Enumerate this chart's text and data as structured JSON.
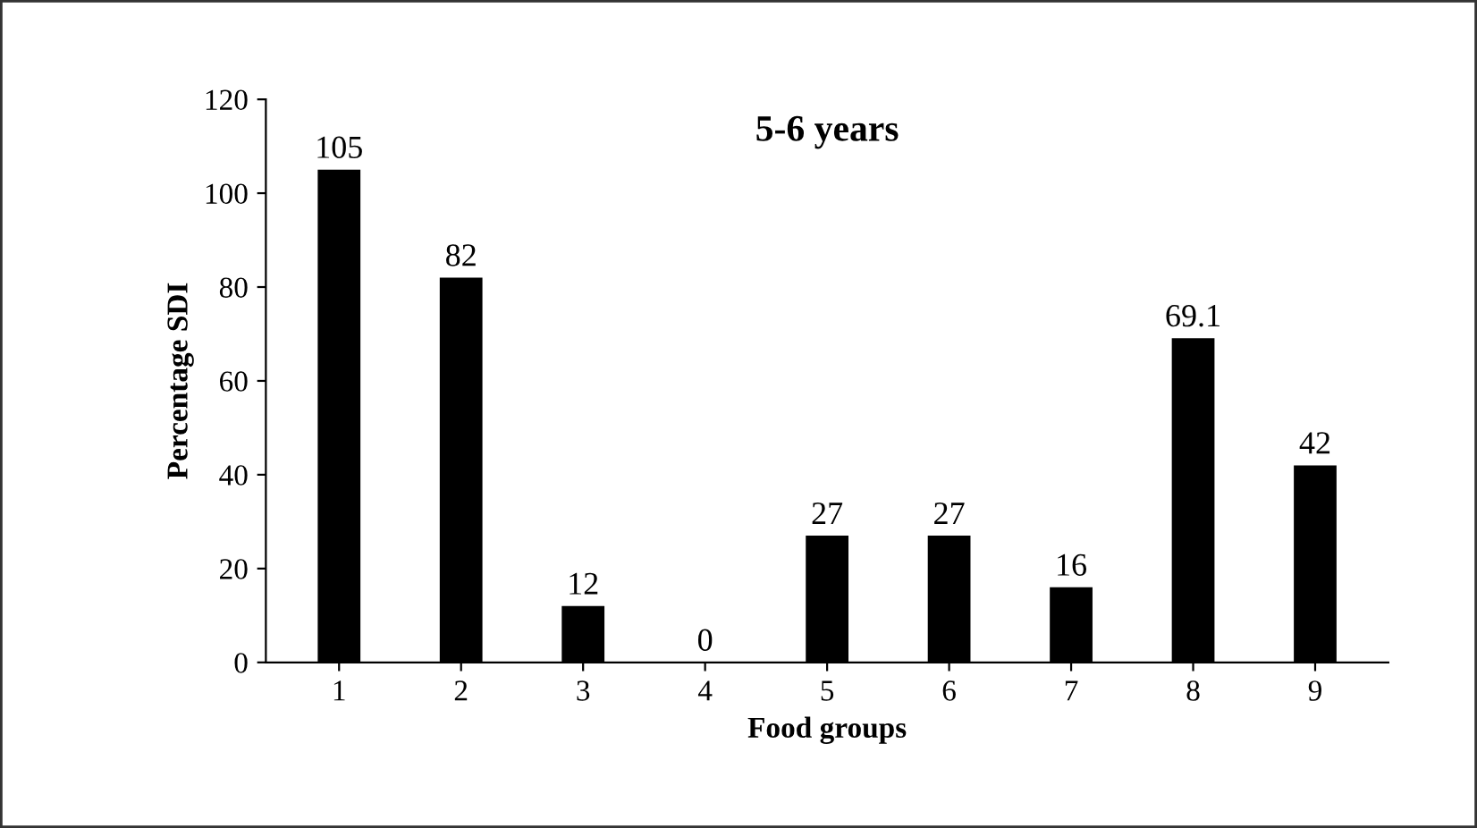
{
  "chart_data": {
    "type": "bar",
    "title": "5-6 years",
    "xlabel": "Food groups",
    "ylabel": "Percentage SDI",
    "categories": [
      "1",
      "2",
      "3",
      "4",
      "5",
      "6",
      "7",
      "8",
      "9"
    ],
    "values": [
      105,
      82,
      12,
      0,
      27,
      27,
      16,
      69.1,
      42
    ],
    "color": "#000000",
    "ylim": [
      0,
      120
    ],
    "yticks": [
      0,
      20,
      40,
      60,
      80,
      100,
      120
    ],
    "data_labels": true,
    "grid": false
  }
}
